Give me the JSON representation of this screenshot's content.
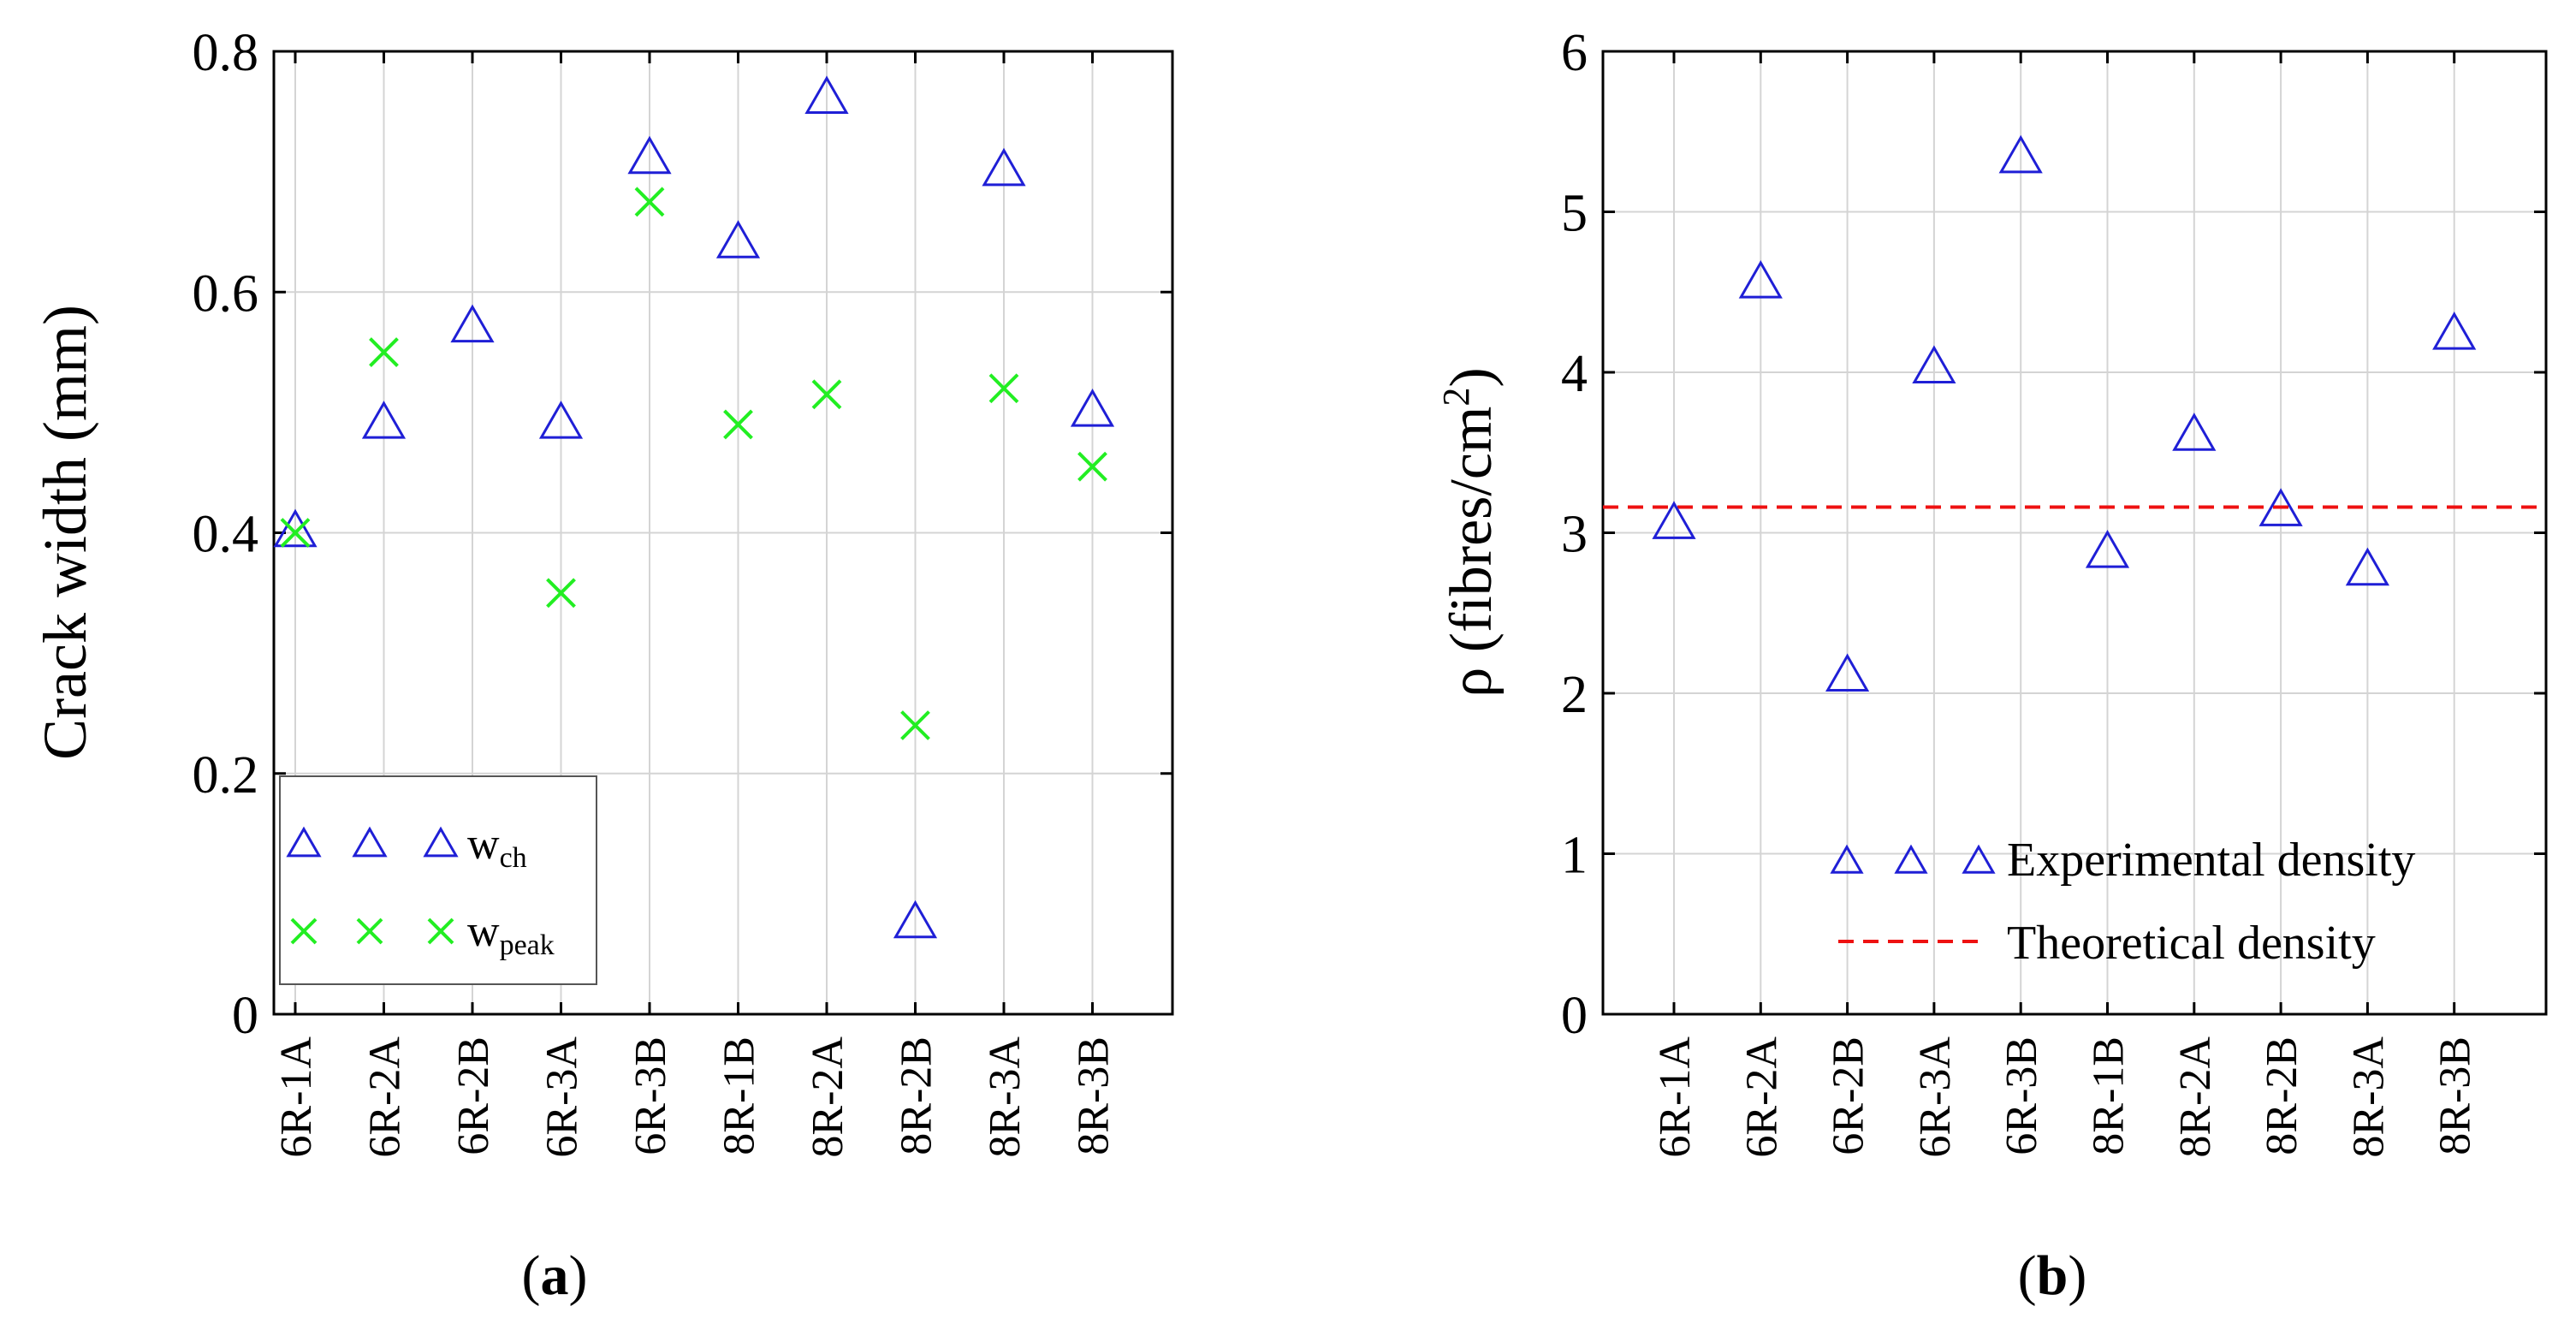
{
  "colors": {
    "triangle": "#1f1fd6",
    "cross": "#22ee22",
    "theory_line": "#ee1111",
    "axis": "#000000",
    "grid": "#d4d4d4"
  },
  "chart_data": [
    {
      "type": "scatter",
      "panel_label": "a",
      "categories": [
        "6R-1A",
        "6R-2A",
        "6R-2B",
        "6R-3A",
        "6R-3B",
        "8R-1B",
        "8R-2A",
        "8R-2B",
        "8R-3A",
        "8R-3B"
      ],
      "ylabel": "Crack width (mm)",
      "xlabel": "",
      "ylim": [
        0,
        0.8
      ],
      "yticks": [
        0,
        0.2,
        0.4,
        0.6,
        0.8
      ],
      "ytick_labels": [
        "0",
        "0.2",
        "0.4",
        "0.6",
        "0.8"
      ],
      "grid": true,
      "legend_position": "bottom-left",
      "series": [
        {
          "name": "w_ch",
          "symbol": "w",
          "subscript": "ch",
          "marker": "triangle",
          "values": [
            0.4,
            0.49,
            0.57,
            0.49,
            0.71,
            0.64,
            0.76,
            0.075,
            0.7,
            0.5
          ]
        },
        {
          "name": "w_peak",
          "symbol": "w",
          "subscript": "peak",
          "marker": "cross",
          "values": [
            0.4,
            0.55,
            null,
            0.35,
            0.675,
            0.49,
            0.515,
            0.24,
            0.52,
            0.455
          ]
        }
      ]
    },
    {
      "type": "scatter",
      "panel_label": "b",
      "categories": [
        "6R-1A",
        "6R-2A",
        "6R-2B",
        "6R-3A",
        "6R-3B",
        "8R-1B",
        "8R-2A",
        "8R-2B",
        "8R-3A",
        "8R-3B"
      ],
      "ylabel_prefix": "ρ (fibres/cm",
      "ylabel_sup": "2",
      "ylabel_suffix": ")",
      "xlabel": "",
      "ylim": [
        0,
        6
      ],
      "yticks": [
        0,
        1,
        2,
        3,
        4,
        5,
        6
      ],
      "ytick_labels": [
        "0",
        "1",
        "2",
        "3",
        "4",
        "5",
        "6"
      ],
      "grid": true,
      "legend_position": "bottom-right",
      "series": [
        {
          "name": "Experimental density",
          "marker": "triangle",
          "values": [
            3.05,
            4.55,
            2.1,
            4.02,
            5.33,
            2.87,
            3.6,
            3.13,
            2.76,
            4.23
          ]
        }
      ],
      "reference_lines": [
        {
          "name": "Theoretical density",
          "style": "dashed",
          "value": 3.16
        }
      ]
    }
  ]
}
